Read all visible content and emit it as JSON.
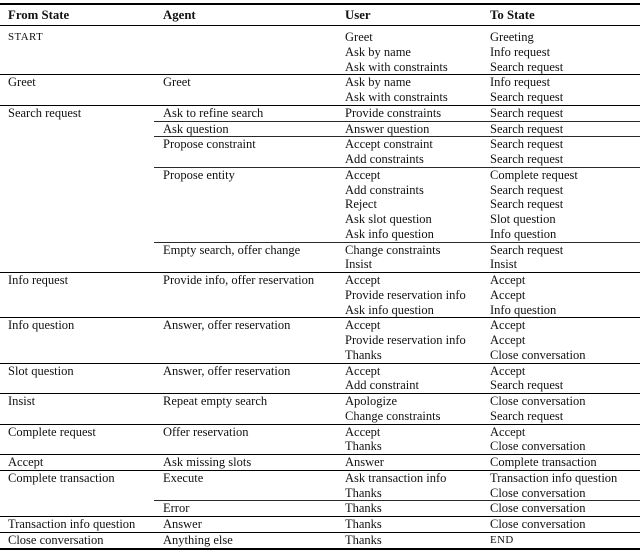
{
  "table": {
    "headers": [
      "From State",
      "Agent",
      "User",
      "To State"
    ],
    "sections": [
      {
        "from": "START",
        "from_sc": true,
        "groups": [
          {
            "agent": "",
            "rows": [
              {
                "user": "Greet",
                "to": "Greeting"
              },
              {
                "user": "Ask by name",
                "to": "Info request"
              },
              {
                "user": "Ask with constraints",
                "to": "Search request"
              }
            ]
          }
        ]
      },
      {
        "from": "Greet",
        "groups": [
          {
            "agent": "Greet",
            "rows": [
              {
                "user": "Ask by name",
                "to": "Info request"
              },
              {
                "user": "Ask with constraints",
                "to": "Search request"
              }
            ]
          }
        ]
      },
      {
        "from": "Search request",
        "groups": [
          {
            "agent": "Ask to refine search",
            "rows": [
              {
                "user": "Provide constraints",
                "to": "Search request"
              }
            ]
          },
          {
            "agent": "Ask question",
            "rows": [
              {
                "user": "Answer question",
                "to": "Search request"
              }
            ]
          },
          {
            "agent": "Propose constraint",
            "rows": [
              {
                "user": "Accept constraint",
                "to": "Search request"
              },
              {
                "user": "Add constraints",
                "to": "Search request"
              }
            ]
          },
          {
            "agent": "Propose entity",
            "rows": [
              {
                "user": "Accept",
                "to": "Complete request"
              },
              {
                "user": "Add constraints",
                "to": "Search request"
              },
              {
                "user": "Reject",
                "to": "Search request"
              },
              {
                "user": "Ask slot question",
                "to": "Slot question"
              },
              {
                "user": "Ask info question",
                "to": "Info question"
              }
            ]
          },
          {
            "agent": "Empty search, offer change",
            "rows": [
              {
                "user": "Change constraints",
                "to": "Search request"
              },
              {
                "user": "Insist",
                "to": "Insist"
              }
            ]
          }
        ]
      },
      {
        "from": "Info request",
        "groups": [
          {
            "agent": "Provide info, offer reservation",
            "rows": [
              {
                "user": "Accept",
                "to": "Accept"
              },
              {
                "user": "Provide reservation info",
                "to": "Accept"
              },
              {
                "user": "Ask info question",
                "to": "Info question"
              }
            ]
          }
        ]
      },
      {
        "from": "Info question",
        "groups": [
          {
            "agent": "Answer, offer reservation",
            "rows": [
              {
                "user": "Accept",
                "to": "Accept"
              },
              {
                "user": "Provide reservation info",
                "to": "Accept"
              },
              {
                "user": "Thanks",
                "to": "Close conversation"
              }
            ]
          }
        ]
      },
      {
        "from": "Slot question",
        "groups": [
          {
            "agent": "Answer, offer reservation",
            "rows": [
              {
                "user": "Accept",
                "to": "Accept"
              },
              {
                "user": "Add constraint",
                "to": "Search request"
              }
            ]
          }
        ]
      },
      {
        "from": "Insist",
        "groups": [
          {
            "agent": "Repeat empty search",
            "rows": [
              {
                "user": "Apologize",
                "to": "Close conversation"
              },
              {
                "user": "Change constraints",
                "to": "Search request"
              }
            ]
          }
        ]
      },
      {
        "from": "Complete request",
        "groups": [
          {
            "agent": "Offer reservation",
            "rows": [
              {
                "user": "Accept",
                "to": "Accept"
              },
              {
                "user": "Thanks",
                "to": "Close conversation"
              }
            ]
          }
        ]
      },
      {
        "from": "Accept",
        "groups": [
          {
            "agent": "Ask missing slots",
            "rows": [
              {
                "user": "Answer",
                "to": "Complete transaction"
              }
            ]
          }
        ]
      },
      {
        "from": "Complete transaction",
        "groups": [
          {
            "agent": "Execute",
            "rows": [
              {
                "user": "Ask transaction info",
                "to": "Transaction info question"
              },
              {
                "user": "Thanks",
                "to": "Close conversation"
              }
            ]
          },
          {
            "agent": "Error",
            "rows": [
              {
                "user": "Thanks",
                "to": "Close conversation"
              }
            ]
          }
        ]
      },
      {
        "from": "Transaction info question",
        "groups": [
          {
            "agent": "Answer",
            "rows": [
              {
                "user": "Thanks",
                "to": "Close conversation"
              }
            ]
          }
        ]
      },
      {
        "from": "Close conversation",
        "groups": [
          {
            "agent": "Anything else",
            "rows": [
              {
                "user": "Thanks",
                "to": "END",
                "to_sc": true
              }
            ]
          }
        ]
      }
    ]
  }
}
